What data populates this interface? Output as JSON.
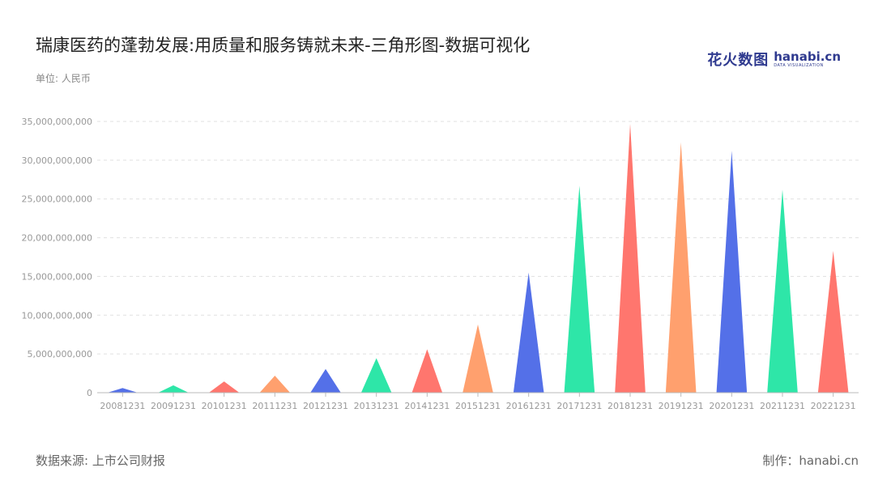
{
  "header": {
    "title": "瑞康医药的蓬勃发展:用质量和服务铸就未来-三角形图-数据可视化",
    "unit": "单位: 人民币"
  },
  "logo": {
    "cn": "花火数图",
    "en": "hanabi.cn",
    "sub": "DATA VISUALIZATION"
  },
  "footer": {
    "source": "数据来源: 上市公司财报",
    "maker": "制作：hanabi.cn"
  },
  "colors": {
    "palette": [
      "#5470e8",
      "#2ee6a8",
      "#ff766e",
      "#ffa06e"
    ]
  },
  "chart_data": {
    "type": "bar",
    "style": "triangle",
    "categories": [
      "20081231",
      "20091231",
      "20101231",
      "20111231",
      "20121231",
      "20131231",
      "20141231",
      "20151231",
      "20161231",
      "20171231",
      "20181231",
      "20191231",
      "20201231",
      "20211231",
      "20221231"
    ],
    "values": [
      600000000,
      950000000,
      1450000000,
      2200000000,
      3050000000,
      4450000000,
      5600000000,
      8800000000,
      15500000000,
      26700000000,
      34700000000,
      32300000000,
      31200000000,
      26200000000,
      18300000000
    ],
    "ylim": [
      0,
      35000000000
    ],
    "yticks": [
      "0",
      "5,000,000,000",
      "10,000,000,000",
      "15,000,000,000",
      "20,000,000,000",
      "25,000,000,000",
      "30,000,000,000",
      "35,000,000,000"
    ],
    "grid": true,
    "legend": "none"
  }
}
